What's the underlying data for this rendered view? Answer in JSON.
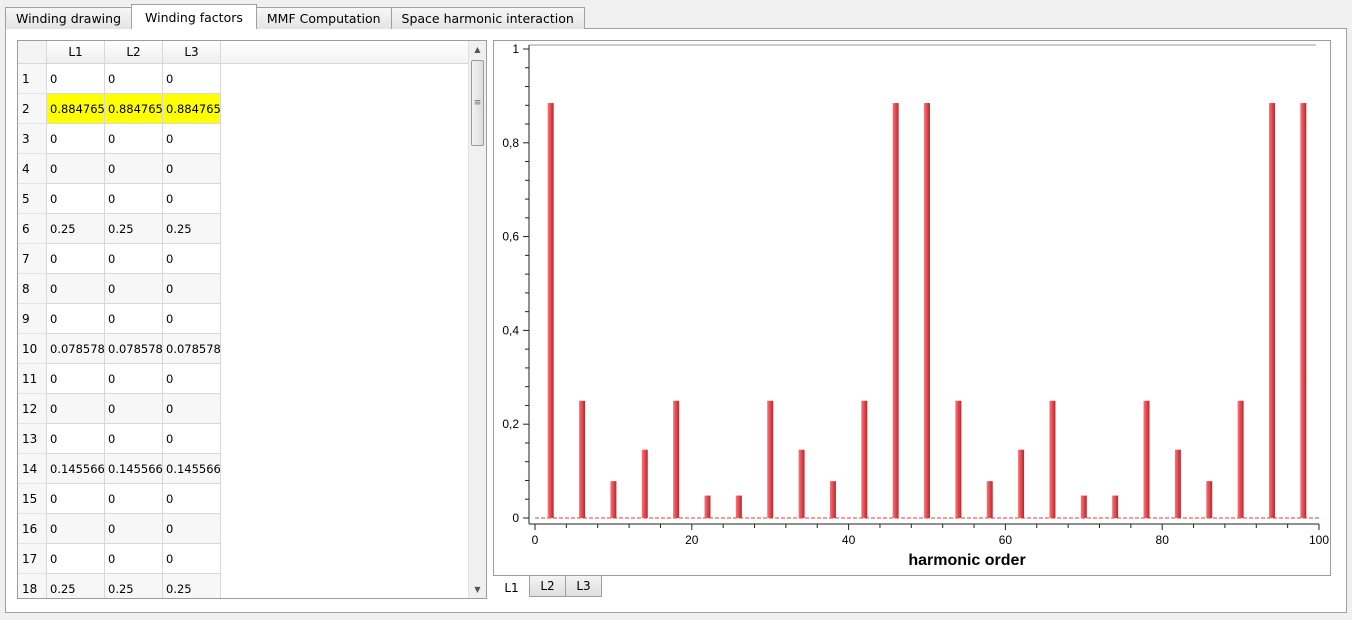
{
  "tabs": [
    {
      "label": "Winding drawing",
      "active": false
    },
    {
      "label": "Winding factors",
      "active": true
    },
    {
      "label": "MMF Computation",
      "active": false
    },
    {
      "label": "Space harmonic interaction",
      "active": false
    }
  ],
  "table": {
    "columns": [
      "L1",
      "L2",
      "L3"
    ],
    "highlight_color": "#ffff00",
    "rows": [
      {
        "index": "1",
        "values": [
          "0",
          "0",
          "0"
        ]
      },
      {
        "index": "2",
        "values": [
          "0.884765",
          "0.884765",
          "0.884765"
        ],
        "highlighted": true
      },
      {
        "index": "3",
        "values": [
          "0",
          "0",
          "0"
        ]
      },
      {
        "index": "4",
        "values": [
          "0",
          "0",
          "0"
        ]
      },
      {
        "index": "5",
        "values": [
          "0",
          "0",
          "0"
        ]
      },
      {
        "index": "6",
        "values": [
          "0.25",
          "0.25",
          "0.25"
        ]
      },
      {
        "index": "7",
        "values": [
          "0",
          "0",
          "0"
        ]
      },
      {
        "index": "8",
        "values": [
          "0",
          "0",
          "0"
        ]
      },
      {
        "index": "9",
        "values": [
          "0",
          "0",
          "0"
        ]
      },
      {
        "index": "10",
        "values": [
          "0.0785783",
          "0.0785783",
          "0.0785783"
        ]
      },
      {
        "index": "11",
        "values": [
          "0",
          "0",
          "0"
        ]
      },
      {
        "index": "12",
        "values": [
          "0",
          "0",
          "0"
        ]
      },
      {
        "index": "13",
        "values": [
          "0",
          "0",
          "0"
        ]
      },
      {
        "index": "14",
        "values": [
          "0.145566",
          "0.145566",
          "0.145566"
        ]
      },
      {
        "index": "15",
        "values": [
          "0",
          "0",
          "0"
        ]
      },
      {
        "index": "16",
        "values": [
          "0",
          "0",
          "0"
        ]
      },
      {
        "index": "17",
        "values": [
          "0",
          "0",
          "0"
        ]
      },
      {
        "index": "18",
        "values": [
          "0.25",
          "0.25",
          "0.25"
        ]
      }
    ]
  },
  "chart_tabs": [
    {
      "label": "L1",
      "active": true
    },
    {
      "label": "L2",
      "active": false
    },
    {
      "label": "L3",
      "active": false
    }
  ],
  "chart_data": {
    "type": "bar",
    "title": "",
    "xlabel": "harmonic order",
    "ylabel": "",
    "xlim": [
      0,
      100
    ],
    "ylim": [
      0,
      1
    ],
    "xticks": [
      "0",
      "20",
      "40",
      "60",
      "80",
      "100"
    ],
    "yticks": [
      "0",
      "0,2",
      "0,4",
      "0,6",
      "0,8",
      "1"
    ],
    "bar_color": "#e8474d",
    "grid": false,
    "x": [
      2,
      6,
      10,
      14,
      18,
      22,
      26,
      30,
      34,
      38,
      42,
      46,
      50,
      54,
      58,
      62,
      66,
      70,
      74,
      78,
      82,
      86,
      90,
      94,
      98
    ],
    "values": [
      0.884765,
      0.25,
      0.0785783,
      0.145566,
      0.25,
      0.0478,
      0.0478,
      0.25,
      0.145566,
      0.0785783,
      0.25,
      0.884765,
      0.884765,
      0.25,
      0.0785783,
      0.145566,
      0.25,
      0.0478,
      0.0478,
      0.25,
      0.145566,
      0.0785783,
      0.25,
      0.884765,
      0.884765
    ]
  }
}
